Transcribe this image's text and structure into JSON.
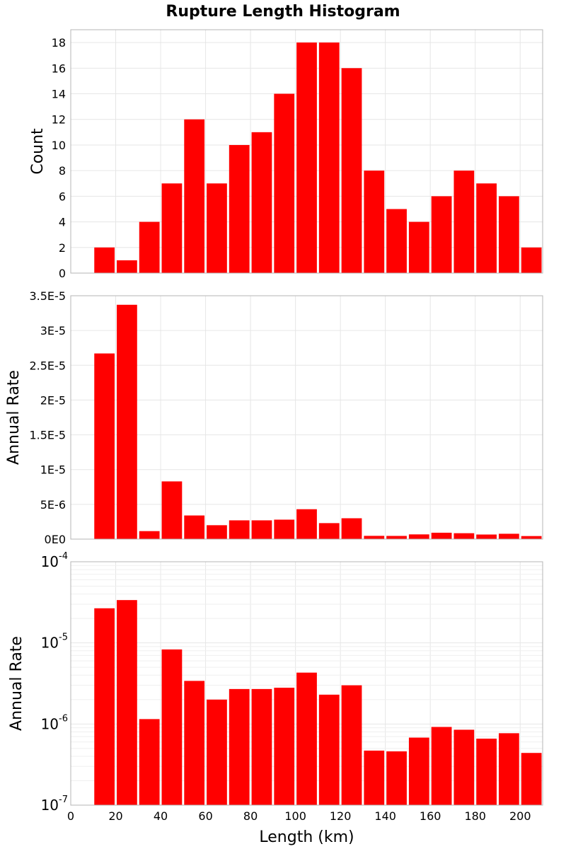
{
  "title": "Rupture Length Histogram",
  "colors": {
    "bar": "#ff0000",
    "grid": "#e6e6e6",
    "frame": "#b5b5b5"
  },
  "chart_data": [
    {
      "type": "bar",
      "ylabel": "Count",
      "ylim": [
        0,
        19
      ],
      "yticks": [
        0,
        2,
        4,
        6,
        8,
        10,
        12,
        14,
        16,
        18
      ],
      "ytick_labels": [
        "0",
        "2",
        "4",
        "6",
        "8",
        "10",
        "12",
        "14",
        "16",
        "18"
      ],
      "xlim": [
        0,
        210
      ],
      "bin_width": 10,
      "x": [
        15,
        25,
        35,
        45,
        55,
        65,
        75,
        85,
        95,
        105,
        115,
        125,
        135,
        145,
        155,
        165,
        175,
        185,
        195,
        205
      ],
      "values": [
        2,
        1,
        4,
        7,
        12,
        7,
        10,
        11,
        14,
        18,
        18,
        16,
        8,
        5,
        4,
        6,
        8,
        7,
        6,
        2
      ],
      "grid": true
    },
    {
      "type": "bar",
      "ylabel": "Annual Rate",
      "ylim": [
        0,
        3.5e-05
      ],
      "yticks": [
        0,
        5e-06,
        1e-05,
        1.5e-05,
        2e-05,
        2.5e-05,
        3e-05,
        3.5e-05
      ],
      "ytick_labels": [
        "0E0",
        "5E-6",
        "1E-5",
        "1.5E-5",
        "2E-5",
        "2.5E-5",
        "3E-5",
        "3.5E-5"
      ],
      "xlim": [
        0,
        210
      ],
      "bin_width": 10,
      "x": [
        15,
        25,
        35,
        45,
        55,
        65,
        75,
        85,
        95,
        105,
        115,
        125,
        135,
        145,
        155,
        165,
        175,
        185,
        195,
        205
      ],
      "values": [
        2.67e-05,
        3.37e-05,
        1.15e-06,
        8.3e-06,
        3.4e-06,
        2e-06,
        2.7e-06,
        2.7e-06,
        2.8e-06,
        4.3e-06,
        2.3e-06,
        3e-06,
        4.7e-07,
        4.6e-07,
        6.8e-07,
        9.2e-07,
        8.5e-07,
        6.6e-07,
        7.7e-07,
        4.4e-07
      ],
      "grid": true
    },
    {
      "type": "bar",
      "ylabel": "Annual Rate",
      "yscale": "log",
      "ylim": [
        1e-07,
        0.0001
      ],
      "ytick_labels": [
        {
          "base": "10",
          "exp": "-4",
          "value": 0.0001
        },
        {
          "base": "10",
          "exp": "-5",
          "value": 1e-05
        },
        {
          "base": "10",
          "exp": "-6",
          "value": 1e-06
        },
        {
          "base": "10",
          "exp": "-7",
          "value": 1e-07
        }
      ],
      "xlabel": "Length (km)",
      "xlim": [
        0,
        210
      ],
      "xticks": [
        0,
        20,
        40,
        60,
        80,
        100,
        120,
        140,
        160,
        180,
        200
      ],
      "xtick_labels": [
        "0",
        "20",
        "40",
        "60",
        "80",
        "100",
        "120",
        "140",
        "160",
        "180",
        "200"
      ],
      "bin_width": 10,
      "x": [
        15,
        25,
        35,
        45,
        55,
        65,
        75,
        85,
        95,
        105,
        115,
        125,
        135,
        145,
        155,
        165,
        175,
        185,
        195,
        205
      ],
      "values": [
        2.67e-05,
        3.37e-05,
        1.15e-06,
        8.3e-06,
        3.4e-06,
        2e-06,
        2.7e-06,
        2.7e-06,
        2.8e-06,
        4.3e-06,
        2.3e-06,
        3e-06,
        4.7e-07,
        4.6e-07,
        6.8e-07,
        9.2e-07,
        8.5e-07,
        6.6e-07,
        7.7e-07,
        4.4e-07
      ],
      "grid": true
    }
  ]
}
